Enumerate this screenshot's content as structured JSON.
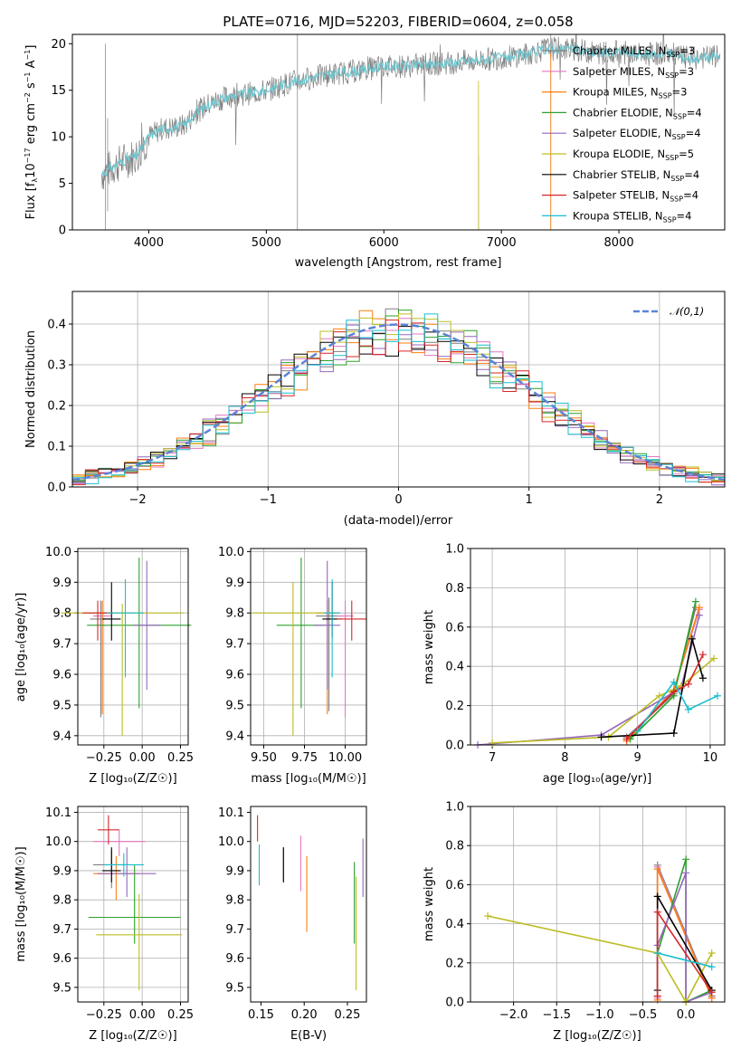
{
  "colors": {
    "Chabrier MILES": "#7f7f7f",
    "Salpeter MILES": "#e377c2",
    "Kroupa MILES": "#ff7f0e",
    "Chabrier ELODIE": "#2ca02c",
    "Salpeter ELODIE": "#9467bd",
    "Kroupa ELODIE": "#bcbd22",
    "Chabrier STELIB": "#000000",
    "Salpeter STELIB": "#d62728",
    "Kroupa STELIB": "#17becf",
    "model_line": "#6ec6cf",
    "normal": "#5b84d6"
  },
  "chart_data": [
    {
      "id": "spectrum",
      "type": "line",
      "title": "PLATE=0716, MJD=52203, FIBERID=0604, z=0.058",
      "xlabel": "wavelength [Angstrom, rest frame]",
      "ylabel_main": "Flux [f",
      "ylabel_sub": "λ",
      "ylabel_rest": "10",
      "ylabel_sup1": "−17",
      "ylabel_mid": " erg cm",
      "ylabel_sup2": "−2",
      "ylabel_mid2": " s",
      "ylabel_sup3": "−1",
      "ylabel_end": " A",
      "ylabel_sup4": "−1",
      "ylabel_close": "]",
      "xlim": [
        3350,
        8900
      ],
      "ylim": [
        0,
        21
      ],
      "xticks": [
        4000,
        5000,
        6000,
        7000,
        8000
      ],
      "yticks": [
        0,
        5,
        10,
        15,
        20
      ],
      "grid": false,
      "legend_position": "top-right",
      "legend": [
        {
          "name": "Chabrier MILES",
          "nssp": "3"
        },
        {
          "name": "Salpeter MILES",
          "nssp": "3"
        },
        {
          "name": "Kroupa MILES",
          "nssp": "3"
        },
        {
          "name": "Chabrier ELODIE",
          "nssp": "4"
        },
        {
          "name": "Salpeter ELODIE",
          "nssp": "4"
        },
        {
          "name": "Kroupa ELODIE",
          "nssp": "5"
        },
        {
          "name": "Chabrier STELIB",
          "nssp": "4"
        },
        {
          "name": "Salpeter STELIB",
          "nssp": "4"
        },
        {
          "name": "Kroupa STELIB",
          "nssp": "4"
        }
      ],
      "legend_nssp_prefix": ", N",
      "legend_nssp_sub": "SSP",
      "legend_nssp_eq": "=",
      "continuum_x": [
        3600,
        3700,
        3800,
        3900,
        4000,
        4100,
        4200,
        4300,
        4400,
        4500,
        4600,
        4700,
        4800,
        4900,
        5000,
        5200,
        5400,
        5600,
        5800,
        6000,
        6200,
        6400,
        6600,
        6800,
        7000,
        7200,
        7400,
        7600,
        7800,
        8000,
        8200,
        8400,
        8600,
        8800
      ],
      "continuum_y": [
        6.0,
        6.8,
        7.5,
        8.0,
        10.0,
        10.8,
        11.0,
        11.2,
        12.6,
        13.4,
        14.0,
        14.4,
        14.6,
        14.7,
        15.0,
        15.8,
        16.4,
        16.8,
        17.1,
        17.6,
        17.6,
        17.8,
        18.0,
        18.2,
        18.5,
        18.8,
        19.5,
        19.4,
        19.0,
        19.1,
        18.8,
        19.0,
        18.4,
        18.6
      ]
    },
    {
      "id": "residuals",
      "type": "step",
      "xlabel": "(data-model)/error",
      "ylabel": "Normed distribution",
      "xlim": [
        -2.5,
        2.5
      ],
      "ylim": [
        0,
        0.48
      ],
      "xticks": [
        -2,
        -1,
        0,
        1,
        2
      ],
      "yticks": [
        0.0,
        0.1,
        0.2,
        0.3,
        0.4
      ],
      "grid": true,
      "legend": "𝒩(0,1)",
      "legend_position": "top-right",
      "bin_width": 0.1
    },
    {
      "id": "age-vs-Z",
      "type": "errorbar",
      "xlabel": "Z [log₁₀(Z/Z☉)]",
      "ylabel": "age  [log₁₀(age/yr)]",
      "xlim": [
        -0.42,
        0.3
      ],
      "ylim": [
        9.37,
        10.01
      ],
      "xticks": [
        -0.25,
        0.0,
        0.25
      ],
      "yticks": [
        9.4,
        9.5,
        9.6,
        9.7,
        9.8,
        9.9,
        10.0
      ],
      "grid": true,
      "points": [
        {
          "model": "Chabrier MILES",
          "x": -0.27,
          "xerr": 0.07,
          "y": 9.78,
          "ylo": 9.46,
          "yhi": 9.84
        },
        {
          "model": "Salpeter MILES",
          "x": -0.26,
          "xerr": 0.06,
          "y": 9.79,
          "ylo": 9.47,
          "yhi": 9.84
        },
        {
          "model": "Kroupa MILES",
          "x": -0.26,
          "xerr": 0.08,
          "y": 9.8,
          "ylo": 9.47,
          "yhi": 9.84
        },
        {
          "model": "Chabrier ELODIE",
          "x": -0.02,
          "xerr": 0.34,
          "y": 9.76,
          "ylo": 9.49,
          "yhi": 9.98
        },
        {
          "model": "Salpeter ELODIE",
          "x": 0.03,
          "xerr": 0.09,
          "y": 9.76,
          "ylo": 9.55,
          "yhi": 9.97
        },
        {
          "model": "Kroupa ELODIE",
          "x": -0.13,
          "xerr": 0.4,
          "y": 9.8,
          "ylo": 9.4,
          "yhi": 9.83
        },
        {
          "model": "Chabrier STELIB",
          "x": -0.2,
          "xerr": 0.06,
          "y": 9.78,
          "ylo": 9.71,
          "yhi": 9.9
        },
        {
          "model": "Salpeter STELIB",
          "x": -0.29,
          "xerr": 0.1,
          "y": 9.8,
          "ylo": 9.71,
          "yhi": 9.84
        },
        {
          "model": "Kroupa STELIB",
          "x": -0.11,
          "xerr": 0.12,
          "y": 9.8,
          "ylo": 9.59,
          "yhi": 9.91
        }
      ]
    },
    {
      "id": "age-vs-mass",
      "type": "errorbar",
      "xlabel": "mass [log₁₀(M/M☉)]",
      "ylabel": "",
      "xlim": [
        9.42,
        10.13
      ],
      "ylim": [
        9.37,
        10.01
      ],
      "xticks": [
        9.5,
        9.75,
        10.0
      ],
      "yticks": [
        9.4,
        9.5,
        9.6,
        9.7,
        9.8,
        9.9,
        10.0
      ],
      "grid": true,
      "points": [
        {
          "model": "Chabrier MILES",
          "x": 9.9,
          "xerr": 0.08,
          "y": 9.79,
          "ylo": 9.48,
          "yhi": 9.85
        },
        {
          "model": "Salpeter MILES",
          "x": 10.0,
          "xerr": 0.05,
          "y": 9.79,
          "ylo": 9.46,
          "yhi": 9.84
        },
        {
          "model": "Kroupa MILES",
          "x": 9.89,
          "xerr": 0.07,
          "y": 9.8,
          "ylo": 9.47,
          "yhi": 9.84
        },
        {
          "model": "Chabrier ELODIE",
          "x": 9.73,
          "xerr": 0.15,
          "y": 9.76,
          "ylo": 9.49,
          "yhi": 9.98
        },
        {
          "model": "Salpeter ELODIE",
          "x": 9.89,
          "xerr": 0.08,
          "y": 9.76,
          "ylo": 9.55,
          "yhi": 9.97
        },
        {
          "model": "Kroupa ELODIE",
          "x": 9.68,
          "xerr": 0.25,
          "y": 9.8,
          "ylo": 9.4,
          "yhi": 9.9
        },
        {
          "model": "Chabrier STELIB",
          "x": 9.92,
          "xerr": 0.06,
          "y": 9.78,
          "ylo": 9.72,
          "yhi": 9.9
        },
        {
          "model": "Salpeter STELIB",
          "x": 10.04,
          "xerr": 0.09,
          "y": 9.78,
          "ylo": 9.71,
          "yhi": 9.84
        },
        {
          "model": "Kroupa STELIB",
          "x": 9.92,
          "xerr": 0.05,
          "y": 9.8,
          "ylo": 9.59,
          "yhi": 9.91
        }
      ]
    },
    {
      "id": "mass-weight-vs-age",
      "type": "line",
      "xlabel": "age  [log₁₀(age/yr)]",
      "ylabel": "mass weight",
      "xlim": [
        6.7,
        10.2
      ],
      "ylim": [
        0.0,
        1.0
      ],
      "xticks": [
        7,
        8,
        9,
        10
      ],
      "yticks": [
        0.0,
        0.2,
        0.4,
        0.6,
        0.8,
        1.0
      ],
      "grid": true,
      "series": [
        {
          "model": "Chabrier MILES",
          "x": [
            8.85,
            9.5,
            9.8
          ],
          "y": [
            0.04,
            0.26,
            0.7
          ]
        },
        {
          "model": "Salpeter MILES",
          "x": [
            8.85,
            9.5,
            9.85
          ],
          "y": [
            0.03,
            0.28,
            0.69
          ]
        },
        {
          "model": "Kroupa MILES",
          "x": [
            8.85,
            9.5,
            9.85
          ],
          "y": [
            0.02,
            0.28,
            0.7
          ]
        },
        {
          "model": "Chabrier ELODIE",
          "x": [
            8.9,
            9.5,
            9.8
          ],
          "y": [
            0.03,
            0.25,
            0.73
          ]
        },
        {
          "model": "Salpeter ELODIE",
          "x": [
            6.8,
            8.5,
            9.6,
            9.85
          ],
          "y": [
            0.0,
            0.05,
            0.29,
            0.66
          ]
        },
        {
          "model": "Kroupa ELODIE",
          "x": [
            7.0,
            8.6,
            9.3,
            9.6,
            10.05
          ],
          "y": [
            0.01,
            0.04,
            0.25,
            0.3,
            0.44
          ]
        },
        {
          "model": "Chabrier STELIB",
          "x": [
            8.5,
            9.5,
            9.75,
            9.9
          ],
          "y": [
            0.04,
            0.06,
            0.54,
            0.34
          ]
        },
        {
          "model": "Salpeter STELIB",
          "x": [
            8.85,
            9.5,
            9.7,
            9.9
          ],
          "y": [
            0.03,
            0.27,
            0.31,
            0.46
          ]
        },
        {
          "model": "Kroupa STELIB",
          "x": [
            9.0,
            9.5,
            9.7,
            10.1
          ],
          "y": [
            0.07,
            0.32,
            0.18,
            0.25
          ]
        }
      ]
    },
    {
      "id": "mass-vs-Z",
      "type": "errorbar",
      "xlabel": "Z [log₁₀(Z/Z☉)]",
      "ylabel": "mass [log₁₀(M/M☉)]",
      "xlim": [
        -0.42,
        0.3
      ],
      "ylim": [
        9.45,
        10.12
      ],
      "xticks": [
        -0.25,
        0.0,
        0.25
      ],
      "yticks": [
        9.5,
        9.6,
        9.7,
        9.8,
        9.9,
        10.0,
        10.1
      ],
      "grid": true,
      "points": [
        {
          "model": "Chabrier MILES",
          "x": -0.2,
          "xerr": 0.12,
          "y": 9.92,
          "ylo": 9.84,
          "yhi": 9.97
        },
        {
          "model": "Salpeter MILES",
          "x": -0.15,
          "xerr": 0.17,
          "y": 10.0,
          "ylo": 9.95,
          "yhi": 10.04
        },
        {
          "model": "Kroupa MILES",
          "x": -0.17,
          "xerr": 0.15,
          "y": 9.89,
          "ylo": 9.8,
          "yhi": 9.95
        },
        {
          "model": "Chabrier ELODIE",
          "x": -0.05,
          "xerr": 0.3,
          "y": 9.74,
          "ylo": 9.65,
          "yhi": 9.92
        },
        {
          "model": "Salpeter ELODIE",
          "x": -0.1,
          "xerr": 0.19,
          "y": 9.89,
          "ylo": 9.81,
          "yhi": 9.98
        },
        {
          "model": "Kroupa ELODIE",
          "x": -0.02,
          "xerr": 0.28,
          "y": 9.68,
          "ylo": 9.49,
          "yhi": 9.82
        },
        {
          "model": "Chabrier STELIB",
          "x": -0.2,
          "xerr": 0.06,
          "y": 9.9,
          "ylo": 9.86,
          "yhi": 9.98
        },
        {
          "model": "Salpeter STELIB",
          "x": -0.22,
          "xerr": 0.07,
          "y": 10.04,
          "ylo": 9.99,
          "yhi": 10.09
        },
        {
          "model": "Kroupa STELIB",
          "x": -0.12,
          "xerr": 0.13,
          "y": 9.92,
          "ylo": 9.88,
          "yhi": 9.96
        }
      ]
    },
    {
      "id": "mass-vs-EBV",
      "type": "errorbar",
      "xlabel": "E(B-V)",
      "ylabel": "",
      "xlim": [
        0.138,
        0.272
      ],
      "ylim": [
        9.45,
        10.12
      ],
      "xticks": [
        0.15,
        0.2,
        0.25
      ],
      "yticks": [
        9.5,
        9.6,
        9.7,
        9.8,
        9.9,
        10.0,
        10.1
      ],
      "grid": false,
      "points": [
        {
          "model": "Chabrier MILES",
          "x": 0.176,
          "y": 9.92,
          "ylo": 9.86,
          "yhi": 9.98
        },
        {
          "model": "Salpeter MILES",
          "x": 0.196,
          "y": 9.92,
          "ylo": 9.83,
          "yhi": 10.02
        },
        {
          "model": "Kroupa MILES",
          "x": 0.203,
          "y": 9.82,
          "ylo": 9.69,
          "yhi": 9.95
        },
        {
          "model": "Chabrier ELODIE",
          "x": 0.258,
          "y": 9.78,
          "ylo": 9.65,
          "yhi": 9.93
        },
        {
          "model": "Salpeter ELODIE",
          "x": 0.268,
          "y": 9.91,
          "ylo": 9.81,
          "yhi": 10.01
        },
        {
          "model": "Kroupa ELODIE",
          "x": 0.26,
          "y": 9.68,
          "ylo": 9.49,
          "yhi": 9.88
        },
        {
          "model": "Chabrier STELIB",
          "x": 0.176,
          "y": 9.92,
          "ylo": 9.86,
          "yhi": 9.98
        },
        {
          "model": "Salpeter STELIB",
          "x": 0.146,
          "y": 10.04,
          "ylo": 10.0,
          "yhi": 10.09
        },
        {
          "model": "Kroupa STELIB",
          "x": 0.148,
          "y": 9.92,
          "ylo": 9.85,
          "yhi": 9.99
        }
      ]
    },
    {
      "id": "mass-weight-vs-Z",
      "type": "line",
      "xlabel": "Z [log₁₀(Z/Z☉)]",
      "ylabel": "mass weight",
      "xlim": [
        -2.5,
        0.45
      ],
      "ylim": [
        0.0,
        1.0
      ],
      "xticks": [
        -2.0,
        -1.5,
        -1.0,
        -0.5,
        0.0
      ],
      "yticks": [
        0.0,
        0.2,
        0.4,
        0.6,
        0.8,
        1.0
      ],
      "grid": true,
      "series": [
        {
          "model": "Chabrier MILES",
          "x": [
            -0.33,
            -0.33,
            0.3
          ],
          "y": [
            0.03,
            0.7,
            0.03
          ]
        },
        {
          "model": "Salpeter MILES",
          "x": [
            -0.33,
            -0.33,
            0.3
          ],
          "y": [
            0.02,
            0.69,
            0.02
          ]
        },
        {
          "model": "Kroupa MILES",
          "x": [
            -0.33,
            -0.33,
            0.3
          ],
          "y": [
            0.01,
            0.68,
            0.02
          ]
        },
        {
          "model": "Chabrier ELODIE",
          "x": [
            -0.33,
            0.0,
            0.0,
            0.3
          ],
          "y": [
            0.25,
            0.73,
            0.0,
            0.06
          ]
        },
        {
          "model": "Salpeter ELODIE",
          "x": [
            -0.33,
            0.0,
            0.0,
            0.3
          ],
          "y": [
            0.29,
            0.66,
            0.0,
            0.05
          ]
        },
        {
          "model": "Kroupa ELODIE",
          "x": [
            -2.3,
            -0.33,
            0.0,
            0.3
          ],
          "y": [
            0.44,
            0.25,
            0.0,
            0.25
          ]
        },
        {
          "model": "Chabrier STELIB",
          "x": [
            -0.33,
            -0.33,
            0.3
          ],
          "y": [
            0.06,
            0.54,
            0.06
          ]
        },
        {
          "model": "Salpeter STELIB",
          "x": [
            -0.33,
            -0.33,
            0.3
          ],
          "y": [
            0.03,
            0.46,
            0.05
          ]
        },
        {
          "model": "Kroupa STELIB",
          "x": [
            -0.33,
            0.3
          ],
          "y": [
            0.25,
            0.18
          ]
        }
      ]
    }
  ]
}
